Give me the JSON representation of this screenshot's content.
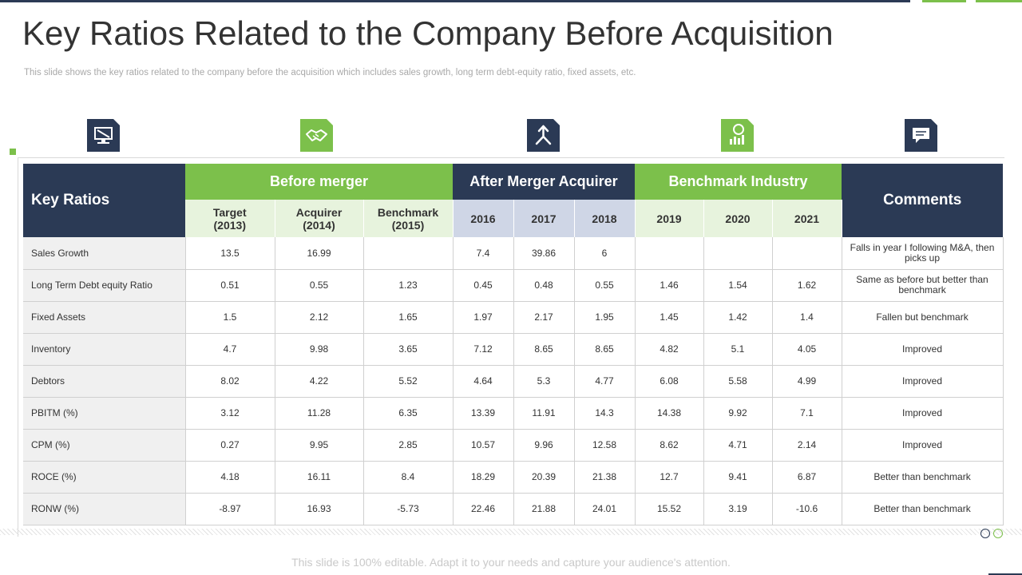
{
  "title": "Key Ratios Related to the Company Before Acquisition",
  "subtitle": "This slide shows the key ratios related to the company before the acquisition which includes sales growth, long term debt-equity ratio, fixed assets, etc.",
  "icons": [
    {
      "name": "monitor-icon",
      "color": "#2b3a55"
    },
    {
      "name": "handshake-icon",
      "color": "#7cc04b"
    },
    {
      "name": "merge-arrow-icon",
      "color": "#2b3a55"
    },
    {
      "name": "growth-chart-icon",
      "color": "#7cc04b"
    },
    {
      "name": "chat-icon",
      "color": "#2b3a55"
    }
  ],
  "colors": {
    "navy": "#2b3a55",
    "green": "#7cc04b",
    "light_green": "#e7f3dd",
    "light_blue": "#cfd6e6"
  },
  "table": {
    "key_header": "Key Ratios",
    "comments_header": "Comments",
    "groups": {
      "before": "Before merger",
      "after": "After Merger Acquirer",
      "benchmark": "Benchmark Industry"
    },
    "subheaders": [
      {
        "line1": "Target",
        "line2": "(2013)"
      },
      {
        "line1": "Acquirer",
        "line2": "(2014)"
      },
      {
        "line1": "Benchmark",
        "line2": "(2015)"
      },
      {
        "line1": "2016",
        "line2": ""
      },
      {
        "line1": "2017",
        "line2": ""
      },
      {
        "line1": "2018",
        "line2": ""
      },
      {
        "line1": "2019",
        "line2": ""
      },
      {
        "line1": "2020",
        "line2": ""
      },
      {
        "line1": "2021",
        "line2": ""
      }
    ],
    "rows": [
      {
        "label": "Sales Growth",
        "values": [
          "13.5",
          "16.99",
          "",
          "7.4",
          "39.86",
          "6",
          "",
          "",
          ""
        ],
        "comment": "Falls in year I following M&A, then picks up"
      },
      {
        "label": "Long Term Debt equity Ratio",
        "values": [
          "0.51",
          "0.55",
          "1.23",
          "0.45",
          "0.48",
          "0.55",
          "1.46",
          "1.54",
          "1.62"
        ],
        "comment": "Same as before but better than benchmark"
      },
      {
        "label": "Fixed Assets",
        "values": [
          "1.5",
          "2.12",
          "1.65",
          "1.97",
          "2.17",
          "1.95",
          "1.45",
          "1.42",
          "1.4"
        ],
        "comment": "Fallen but benchmark"
      },
      {
        "label": "Inventory",
        "values": [
          "4.7",
          "9.98",
          "3.65",
          "7.12",
          "8.65",
          "8.65",
          "4.82",
          "5.1",
          "4.05"
        ],
        "comment": "Improved"
      },
      {
        "label": "Debtors",
        "values": [
          "8.02",
          "4.22",
          "5.52",
          "4.64",
          "5.3",
          "4.77",
          "6.08",
          "5.58",
          "4.99"
        ],
        "comment": "Improved"
      },
      {
        "label": "PBITM  (%)",
        "values": [
          "3.12",
          "11.28",
          "6.35",
          "13.39",
          "11.91",
          "14.3",
          "14.38",
          "9.92",
          "7.1"
        ],
        "comment": "Improved"
      },
      {
        "label": "CPM (%)",
        "values": [
          "0.27",
          "9.95",
          "2.85",
          "10.57",
          "9.96",
          "12.58",
          "8.62",
          "4.71",
          "2.14"
        ],
        "comment": "Improved"
      },
      {
        "label": "ROCE (%)",
        "values": [
          "4.18",
          "16.11",
          "8.4",
          "18.29",
          "20.39",
          "21.38",
          "12.7",
          "9.41",
          "6.87"
        ],
        "comment": "Better than benchmark"
      },
      {
        "label": "RONW (%)",
        "values": [
          "-8.97",
          "16.93",
          "-5.73",
          "22.46",
          "21.88",
          "24.01",
          "15.52",
          "3.19",
          "-10.6"
        ],
        "comment": "Better than benchmark"
      }
    ]
  },
  "footer": "This slide is 100% editable. Adapt it to your needs and capture your audience's attention."
}
